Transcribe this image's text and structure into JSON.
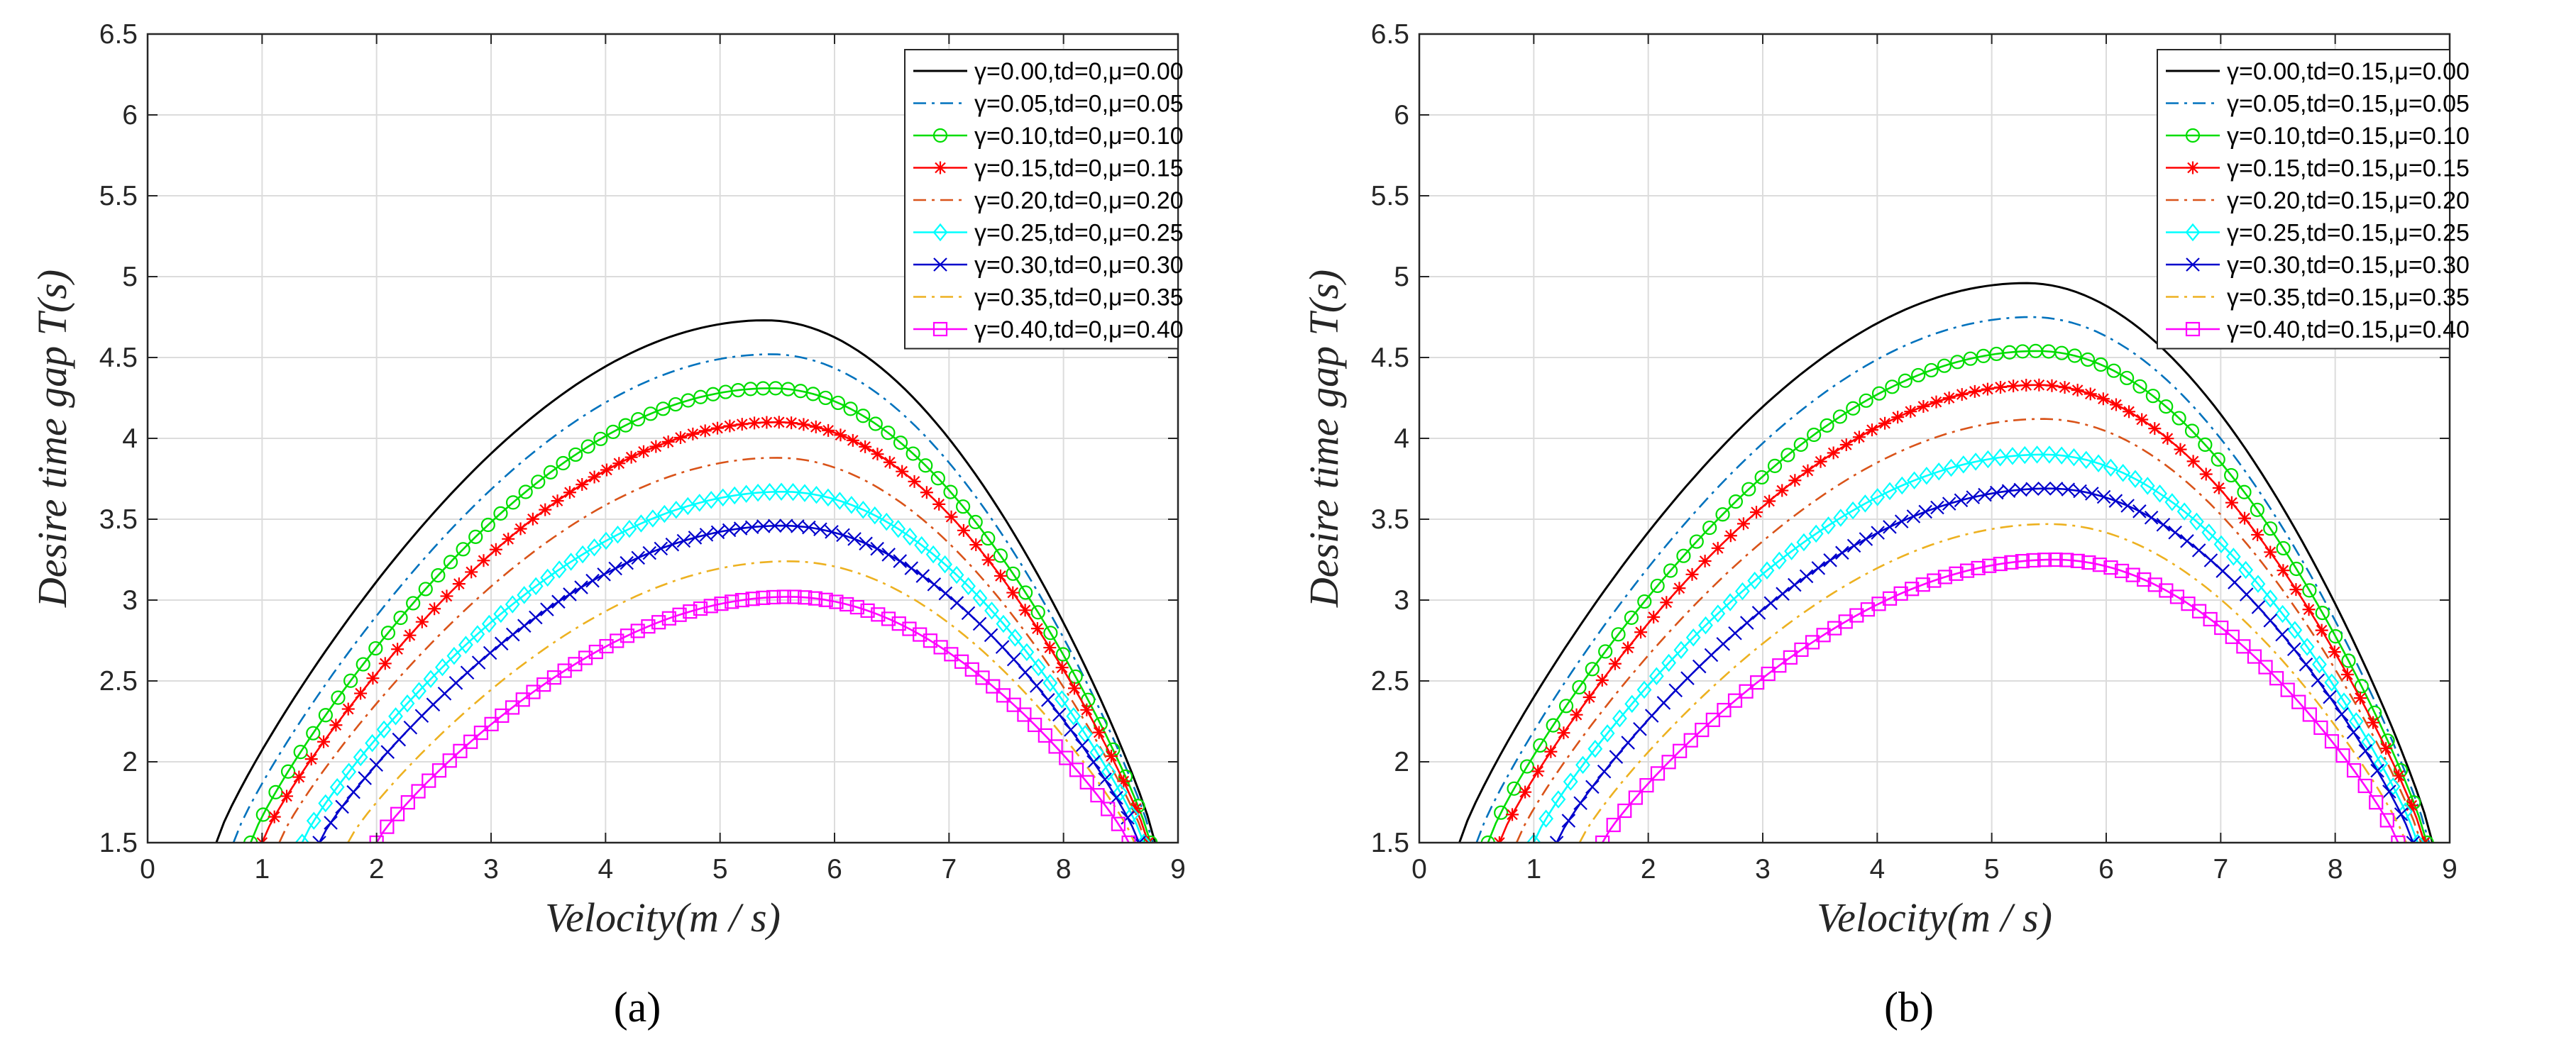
{
  "chart_data": [
    {
      "type": "line",
      "caption": "(a)",
      "xlabel": "Velocity(m / s)",
      "ylabel": "Desire time gap T(s)",
      "xlim": [
        0,
        9
      ],
      "ylim": [
        1.5,
        6.5
      ],
      "xticks": [
        "0",
        "1",
        "2",
        "3",
        "4",
        "5",
        "6",
        "7",
        "8",
        "9"
      ],
      "yticks": [
        "1.5",
        "2",
        "2.5",
        "3",
        "3.5",
        "4",
        "4.5",
        "5",
        "5.5",
        "6",
        "6.5"
      ],
      "grid": true,
      "legend_position": "top-right",
      "series": [
        {
          "name": "γ=0.00,td=0,μ=0.00",
          "color": "#000000",
          "style": "solid",
          "marker": "none",
          "x_start": 0.6,
          "x_end": 8.8,
          "peak_x": 5.4,
          "peak_y": 4.73
        },
        {
          "name": "γ=0.05,td=0,μ=0.05",
          "color": "#0072BD",
          "style": "dashdot",
          "marker": "none",
          "x_start": 0.75,
          "x_end": 8.78,
          "peak_x": 5.45,
          "peak_y": 4.52
        },
        {
          "name": "γ=0.10,td=0,μ=0.10",
          "color": "#00DD00",
          "style": "solid",
          "marker": "circle",
          "x_start": 0.9,
          "x_end": 8.76,
          "peak_x": 5.45,
          "peak_y": 4.31
        },
        {
          "name": "γ=0.15,td=0,μ=0.15",
          "color": "#FF0000",
          "style": "solid",
          "marker": "asterisk",
          "x_start": 1.0,
          "x_end": 8.74,
          "peak_x": 5.5,
          "peak_y": 4.1
        },
        {
          "name": "γ=0.20,td=0,μ=0.20",
          "color": "#D95319",
          "style": "dashdot",
          "marker": "none",
          "x_start": 1.15,
          "x_end": 8.72,
          "peak_x": 5.5,
          "peak_y": 3.88
        },
        {
          "name": "γ=0.25,td=0,μ=0.25",
          "color": "#00FFFF",
          "style": "solid",
          "marker": "diamond",
          "x_start": 1.35,
          "x_end": 8.7,
          "peak_x": 5.55,
          "peak_y": 3.67
        },
        {
          "name": "γ=0.30,td=0,μ=0.30",
          "color": "#0000CC",
          "style": "solid",
          "marker": "x",
          "x_start": 1.5,
          "x_end": 8.66,
          "peak_x": 5.55,
          "peak_y": 3.46
        },
        {
          "name": "γ=0.35,td=0,μ=0.35",
          "color": "#EDB120",
          "style": "dashdot",
          "marker": "none",
          "x_start": 1.75,
          "x_end": 8.62,
          "peak_x": 5.6,
          "peak_y": 3.24
        },
        {
          "name": "γ=0.40,td=0,μ=0.40",
          "color": "#FF00FF",
          "style": "solid",
          "marker": "square",
          "x_start": 2.0,
          "x_end": 8.57,
          "peak_x": 5.6,
          "peak_y": 3.02
        }
      ]
    },
    {
      "type": "line",
      "caption": "(b)",
      "xlabel": "Velocity(m / s)",
      "ylabel": "Desire time gap T(s)",
      "xlim": [
        0,
        9
      ],
      "ylim": [
        1.5,
        6.5
      ],
      "xticks": [
        "0",
        "1",
        "2",
        "3",
        "4",
        "5",
        "6",
        "7",
        "8",
        "9"
      ],
      "yticks": [
        "1.5",
        "2",
        "2.5",
        "3",
        "3.5",
        "4",
        "4.5",
        "5",
        "5.5",
        "6",
        "6.5"
      ],
      "grid": true,
      "legend_position": "top-right",
      "series": [
        {
          "name": "γ=0.00,td=0.15,μ=0.00",
          "color": "#000000",
          "style": "solid",
          "marker": "none",
          "x_start": 0.35,
          "x_end": 8.85,
          "peak_x": 5.3,
          "peak_y": 4.96
        },
        {
          "name": "γ=0.05,td=0.15,μ=0.05",
          "color": "#0072BD",
          "style": "dashdot",
          "marker": "none",
          "x_start": 0.5,
          "x_end": 8.82,
          "peak_x": 5.35,
          "peak_y": 4.75
        },
        {
          "name": "γ=0.10,td=0.15,μ=0.10",
          "color": "#00DD00",
          "style": "solid",
          "marker": "circle",
          "x_start": 0.6,
          "x_end": 8.8,
          "peak_x": 5.4,
          "peak_y": 4.54
        },
        {
          "name": "γ=0.15,td=0.15,μ=0.15",
          "color": "#FF0000",
          "style": "solid",
          "marker": "asterisk",
          "x_start": 0.7,
          "x_end": 8.78,
          "peak_x": 5.4,
          "peak_y": 4.33
        },
        {
          "name": "γ=0.20,td=0.15,μ=0.20",
          "color": "#D95319",
          "style": "dashdot",
          "marker": "none",
          "x_start": 0.85,
          "x_end": 8.75,
          "peak_x": 5.45,
          "peak_y": 4.12
        },
        {
          "name": "γ=0.25,td=0.15,μ=0.25",
          "color": "#00FFFF",
          "style": "solid",
          "marker": "diamond",
          "x_start": 1.0,
          "x_end": 8.72,
          "peak_x": 5.45,
          "peak_y": 3.9
        },
        {
          "name": "γ=0.30,td=0.15,μ=0.30",
          "color": "#0000CC",
          "style": "solid",
          "marker": "x",
          "x_start": 1.2,
          "x_end": 8.68,
          "peak_x": 5.5,
          "peak_y": 3.69
        },
        {
          "name": "γ=0.35,td=0.15,μ=0.35",
          "color": "#EDB120",
          "style": "dashdot",
          "marker": "none",
          "x_start": 1.4,
          "x_end": 8.62,
          "peak_x": 5.5,
          "peak_y": 3.47
        },
        {
          "name": "γ=0.40,td=0.15,μ=0.40",
          "color": "#FF00FF",
          "style": "solid",
          "marker": "square",
          "x_start": 1.6,
          "x_end": 8.55,
          "peak_x": 5.55,
          "peak_y": 3.25
        }
      ]
    }
  ]
}
